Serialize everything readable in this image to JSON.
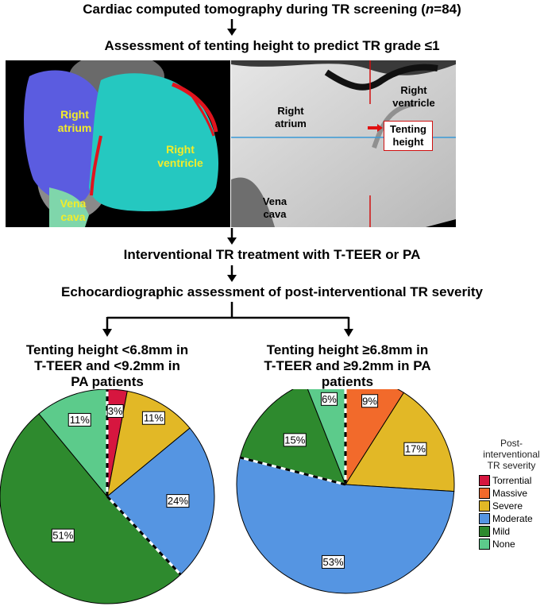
{
  "steps": {
    "s1_pre": "Cardiac computed tomography during TR screening (",
    "s1_n": "n",
    "s1_post": "=84)",
    "s2": "Assessment of tenting height to predict TR grade ≤1",
    "s3": "Interventional TR treatment with T-TEER or PA",
    "s4": "Echocardiographic assessment of post-interventional TR severity"
  },
  "render_labels": {
    "right_atrium": "Right atrium",
    "right_ventricle": "Right ventricle",
    "vena_cava": "Vena cava"
  },
  "ct_labels": {
    "right_atrium": "Right atrium",
    "right_ventricle": "Right ventricle",
    "vena_cava": "Vena cava",
    "tenting_height": "Tenting height"
  },
  "groups": {
    "left_title": "Tenting height <6.8mm in T-TEER and <9.2mm in PA patients",
    "right_title": "Tenting height ≥6.8mm in T-TEER and ≥9.2mm in PA patients"
  },
  "legend": {
    "title": "Post-interventional TR severity",
    "items": [
      {
        "label": "Torrential",
        "color": "#d6163f"
      },
      {
        "label": "Massive",
        "color": "#f26a2b"
      },
      {
        "label": "Severe",
        "color": "#e2b826"
      },
      {
        "label": "Moderate",
        "color": "#5595e2"
      },
      {
        "label": "Mild",
        "color": "#2e8a2e"
      },
      {
        "label": "None",
        "color": "#5ccb8b"
      }
    ]
  },
  "chart_data": [
    {
      "type": "pie",
      "title": "Tenting height <6.8mm in T-TEER and <9.2mm in PA patients",
      "categories": [
        "Torrential",
        "Severe",
        "Moderate",
        "Mild",
        "None"
      ],
      "values": [
        3,
        11,
        24,
        51,
        11
      ],
      "labels": [
        "3%",
        "11%",
        "24%",
        "51%",
        "11%"
      ],
      "colors": [
        "#d6163f",
        "#e2b826",
        "#5595e2",
        "#2e8a2e",
        "#5ccb8b"
      ]
    },
    {
      "type": "pie",
      "title": "Tenting height ≥6.8mm in T-TEER and ≥9.2mm in PA patients",
      "categories": [
        "Massive",
        "Severe",
        "Moderate",
        "Mild",
        "None"
      ],
      "values": [
        9,
        17,
        53,
        15,
        6
      ],
      "labels": [
        "9%",
        "17%",
        "53%",
        "15%",
        "6%"
      ],
      "colors": [
        "#f26a2b",
        "#e2b826",
        "#5595e2",
        "#2e8a2e",
        "#5ccb8b"
      ]
    }
  ]
}
